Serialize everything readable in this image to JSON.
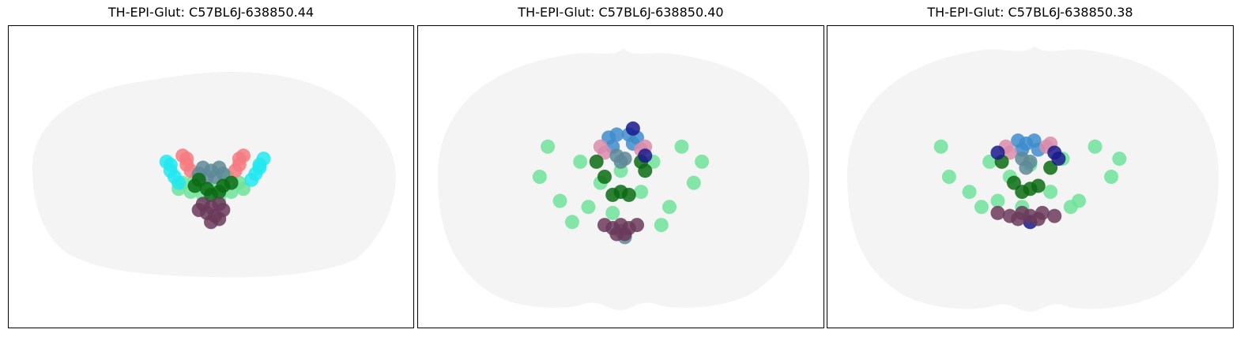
{
  "chart_data": [
    {
      "type": "scatter",
      "title": "TH-EPI-Glut: C57BL6J-638850.44",
      "background_color": "#f4f4f4",
      "grid": false,
      "axes_visible": false,
      "series": [
        {
          "color": "#6fe39a",
          "points": [
            [
              0.43,
              0.52
            ],
            [
              0.45,
              0.55
            ],
            [
              0.47,
              0.53
            ],
            [
              0.5,
              0.54
            ],
            [
              0.53,
              0.53
            ],
            [
              0.55,
              0.55
            ],
            [
              0.57,
              0.52
            ],
            [
              0.48,
              0.56
            ],
            [
              0.52,
              0.57
            ],
            [
              0.46,
              0.51
            ],
            [
              0.54,
              0.5
            ],
            [
              0.58,
              0.54
            ],
            [
              0.42,
              0.54
            ]
          ]
        },
        {
          "color": "#22e8f0",
          "points": [
            [
              0.39,
              0.45
            ],
            [
              0.4,
              0.48
            ],
            [
              0.41,
              0.5
            ],
            [
              0.42,
              0.52
            ],
            [
              0.62,
              0.46
            ],
            [
              0.61,
              0.49
            ],
            [
              0.6,
              0.51
            ],
            [
              0.63,
              0.44
            ],
            [
              0.4,
              0.46
            ],
            [
              0.62,
              0.47
            ]
          ]
        },
        {
          "color": "#f57a80",
          "points": [
            [
              0.43,
              0.43
            ],
            [
              0.44,
              0.46
            ],
            [
              0.45,
              0.48
            ],
            [
              0.58,
              0.43
            ],
            [
              0.57,
              0.46
            ],
            [
              0.56,
              0.48
            ],
            [
              0.44,
              0.44
            ],
            [
              0.57,
              0.44
            ]
          ]
        },
        {
          "color": "#5e8a97",
          "points": [
            [
              0.48,
              0.47
            ],
            [
              0.5,
              0.48
            ],
            [
              0.52,
              0.47
            ],
            [
              0.49,
              0.5
            ],
            [
              0.51,
              0.5
            ],
            [
              0.53,
              0.49
            ],
            [
              0.47,
              0.49
            ]
          ]
        },
        {
          "color": "#0b6b13",
          "points": [
            [
              0.46,
              0.53
            ],
            [
              0.49,
              0.54
            ],
            [
              0.52,
              0.55
            ],
            [
              0.55,
              0.52
            ],
            [
              0.47,
              0.51
            ],
            [
              0.53,
              0.53
            ],
            [
              0.5,
              0.56
            ]
          ]
        },
        {
          "color": "#6b3a5a",
          "points": [
            [
              0.48,
              0.59
            ],
            [
              0.5,
              0.6
            ],
            [
              0.52,
              0.59
            ],
            [
              0.49,
              0.62
            ],
            [
              0.51,
              0.63
            ],
            [
              0.53,
              0.61
            ],
            [
              0.47,
              0.61
            ],
            [
              0.5,
              0.65
            ],
            [
              0.52,
              0.64
            ]
          ]
        }
      ]
    },
    {
      "type": "scatter",
      "title": "TH-EPI-Glut: C57BL6J-638850.40",
      "background_color": "#f4f4f4",
      "grid": false,
      "axes_visible": false,
      "series": [
        {
          "color": "#6fe39a",
          "points": [
            [
              0.32,
              0.4
            ],
            [
              0.3,
              0.5
            ],
            [
              0.35,
              0.58
            ],
            [
              0.4,
              0.45
            ],
            [
              0.42,
              0.6
            ],
            [
              0.45,
              0.52
            ],
            [
              0.48,
              0.62
            ],
            [
              0.55,
              0.55
            ],
            [
              0.58,
              0.45
            ],
            [
              0.62,
              0.6
            ],
            [
              0.65,
              0.4
            ],
            [
              0.68,
              0.52
            ],
            [
              0.7,
              0.45
            ],
            [
              0.38,
              0.65
            ],
            [
              0.6,
              0.66
            ],
            [
              0.5,
              0.48
            ]
          ]
        },
        {
          "color": "#3e8ccc",
          "points": [
            [
              0.47,
              0.37
            ],
            [
              0.48,
              0.4
            ],
            [
              0.49,
              0.36
            ],
            [
              0.52,
              0.36
            ],
            [
              0.53,
              0.39
            ],
            [
              0.54,
              0.37
            ]
          ]
        },
        {
          "color": "#d98cab",
          "points": [
            [
              0.45,
              0.4
            ],
            [
              0.46,
              0.42
            ],
            [
              0.55,
              0.41
            ],
            [
              0.56,
              0.4
            ]
          ]
        },
        {
          "color": "#5e8a97",
          "points": [
            [
              0.49,
              0.43
            ],
            [
              0.5,
              0.45
            ],
            [
              0.51,
              0.44
            ],
            [
              0.5,
              0.68
            ],
            [
              0.51,
              0.7
            ]
          ]
        },
        {
          "color": "#0b6b13",
          "points": [
            [
              0.44,
              0.45
            ],
            [
              0.46,
              0.5
            ],
            [
              0.48,
              0.56
            ],
            [
              0.5,
              0.55
            ],
            [
              0.52,
              0.56
            ],
            [
              0.56,
              0.48
            ],
            [
              0.55,
              0.45
            ]
          ]
        },
        {
          "color": "#1a1a8c",
          "points": [
            [
              0.53,
              0.34
            ],
            [
              0.56,
              0.43
            ]
          ]
        },
        {
          "color": "#6b3a5a",
          "points": [
            [
              0.46,
              0.66
            ],
            [
              0.48,
              0.67
            ],
            [
              0.5,
              0.66
            ],
            [
              0.52,
              0.67
            ],
            [
              0.54,
              0.66
            ],
            [
              0.49,
              0.69
            ],
            [
              0.51,
              0.69
            ]
          ]
        }
      ]
    },
    {
      "type": "scatter",
      "title": "TH-EPI-Glut: C57BL6J-638850.38",
      "background_color": "#f4f4f4",
      "grid": false,
      "axes_visible": false,
      "series": [
        {
          "color": "#6fe39a",
          "points": [
            [
              0.28,
              0.4
            ],
            [
              0.3,
              0.5
            ],
            [
              0.35,
              0.55
            ],
            [
              0.4,
              0.45
            ],
            [
              0.42,
              0.58
            ],
            [
              0.45,
              0.5
            ],
            [
              0.48,
              0.6
            ],
            [
              0.55,
              0.55
            ],
            [
              0.58,
              0.44
            ],
            [
              0.62,
              0.58
            ],
            [
              0.66,
              0.4
            ],
            [
              0.7,
              0.5
            ],
            [
              0.72,
              0.44
            ],
            [
              0.38,
              0.6
            ],
            [
              0.6,
              0.6
            ],
            [
              0.5,
              0.46
            ]
          ]
        },
        {
          "color": "#3e8ccc",
          "points": [
            [
              0.47,
              0.38
            ],
            [
              0.48,
              0.41
            ],
            [
              0.51,
              0.38
            ],
            [
              0.52,
              0.41
            ],
            [
              0.49,
              0.39
            ]
          ]
        },
        {
          "color": "#d98cab",
          "points": [
            [
              0.44,
              0.4
            ],
            [
              0.45,
              0.42
            ],
            [
              0.54,
              0.4
            ],
            [
              0.55,
              0.39
            ]
          ]
        },
        {
          "color": "#5e8a97",
          "points": [
            [
              0.48,
              0.44
            ],
            [
              0.5,
              0.45
            ],
            [
              0.49,
              0.47
            ]
          ]
        },
        {
          "color": "#0b6b13",
          "points": [
            [
              0.43,
              0.45
            ],
            [
              0.46,
              0.52
            ],
            [
              0.48,
              0.55
            ],
            [
              0.5,
              0.54
            ],
            [
              0.52,
              0.53
            ],
            [
              0.55,
              0.47
            ]
          ]
        },
        {
          "color": "#1a1a8c",
          "points": [
            [
              0.42,
              0.42
            ],
            [
              0.56,
              0.42
            ],
            [
              0.57,
              0.44
            ],
            [
              0.5,
              0.65
            ]
          ]
        },
        {
          "color": "#6b3a5a",
          "points": [
            [
              0.42,
              0.62
            ],
            [
              0.45,
              0.63
            ],
            [
              0.48,
              0.62
            ],
            [
              0.5,
              0.63
            ],
            [
              0.53,
              0.62
            ],
            [
              0.56,
              0.63
            ],
            [
              0.47,
              0.64
            ],
            [
              0.52,
              0.64
            ]
          ]
        }
      ]
    }
  ]
}
